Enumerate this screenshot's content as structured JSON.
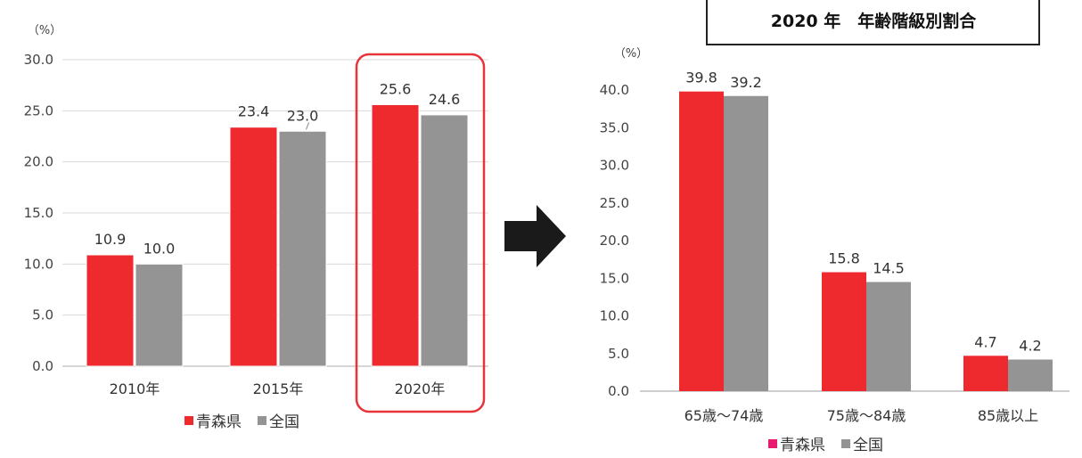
{
  "chart_data": [
    {
      "type": "bar",
      "unit_label": "（%）",
      "categories": [
        "2010年",
        "2015年",
        "2020年"
      ],
      "series": [
        {
          "name": "青森県",
          "values": [
            10.9,
            23.4,
            25.6
          ],
          "color": "#ee2a2e"
        },
        {
          "name": "全国",
          "values": [
            10.0,
            23.0,
            24.6
          ],
          "color": "#949494"
        }
      ],
      "value_labels": [
        [
          "10.9",
          "23.4",
          "25.6"
        ],
        [
          "10.0",
          "23.0",
          "24.6"
        ]
      ],
      "ylim": [
        0,
        30
      ],
      "yticks": [
        "0.0",
        "5.0",
        "10.0",
        "15.0",
        "20.0",
        "25.0",
        "30.0"
      ],
      "grid": true,
      "legend": "bottom",
      "highlight_category": "2020年",
      "highlight_color": "#e8333b"
    },
    {
      "type": "bar",
      "title": "2020 年　年齢階級別割合",
      "unit_label": "（%）",
      "categories": [
        "65歳～74歳",
        "75歳～84歳",
        "85歳以上"
      ],
      "series": [
        {
          "name": "青森県",
          "values": [
            39.8,
            15.8,
            4.7
          ],
          "color": "#ee2a2e"
        },
        {
          "name": "全国",
          "values": [
            39.2,
            14.5,
            4.2
          ],
          "color": "#949494"
        }
      ],
      "value_labels": [
        [
          "39.8",
          "15.8",
          "4.7"
        ],
        [
          "39.2",
          "14.5",
          "4.2"
        ]
      ],
      "ylim": [
        0,
        40
      ],
      "yticks": [
        "0.0",
        "5.0",
        "10.0",
        "15.0",
        "20.0",
        "25.0",
        "30.0",
        "35.0",
        "40.0"
      ],
      "grid": false,
      "legend": "bottom",
      "legend_colors": [
        "#e8196e",
        "#949494"
      ]
    }
  ],
  "arrow_color": "#1a1a1a"
}
